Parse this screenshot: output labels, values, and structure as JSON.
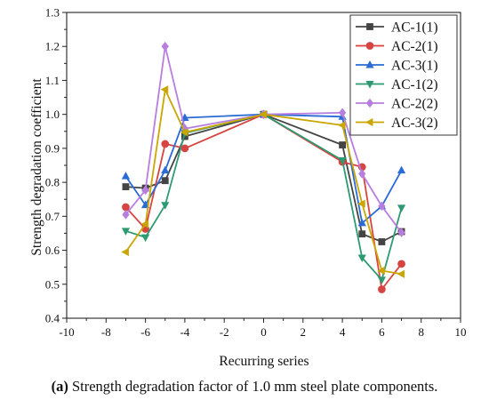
{
  "chart_data": {
    "type": "line",
    "title": "",
    "xlabel": "Recurring series",
    "ylabel": "Strength degradation coefficient",
    "xlim": [
      -10,
      10
    ],
    "ylim": [
      0.4,
      1.3
    ],
    "xticks": [
      -10,
      -8,
      -6,
      -4,
      -2,
      0,
      2,
      4,
      6,
      8,
      10
    ],
    "yticks": [
      0.4,
      0.5,
      0.6,
      0.7,
      0.8,
      0.9,
      1.0,
      1.1,
      1.2,
      1.3
    ],
    "grid": false,
    "legend_position": "top-right",
    "series": [
      {
        "name": "AC-1(1)",
        "color": "#444444",
        "marker": "square",
        "x": [
          -7,
          -6,
          -5,
          -4,
          0,
          4,
          5,
          6,
          7
        ],
        "y": [
          0.787,
          0.783,
          0.805,
          0.935,
          1.0,
          0.91,
          0.648,
          0.625,
          0.655
        ]
      },
      {
        "name": "AC-2(1)",
        "color": "#d64541",
        "marker": "circle",
        "x": [
          -7,
          -6,
          -5,
          -4,
          0,
          4,
          5,
          6,
          7
        ],
        "y": [
          0.727,
          0.663,
          0.913,
          0.9,
          1.0,
          0.86,
          0.845,
          0.485,
          0.56
        ]
      },
      {
        "name": "AC-3(1)",
        "color": "#2a6bd6",
        "marker": "triangle-up",
        "x": [
          -7,
          -6,
          -5,
          -4,
          0,
          4,
          5,
          6,
          7
        ],
        "y": [
          0.818,
          0.733,
          0.835,
          0.99,
          1.0,
          0.993,
          0.68,
          0.73,
          0.835
        ]
      },
      {
        "name": "AC-1(2)",
        "color": "#2e9a72",
        "marker": "triangle-down",
        "x": [
          -7,
          -6,
          -5,
          -4,
          0,
          4,
          5,
          6,
          7
        ],
        "y": [
          0.657,
          0.638,
          0.733,
          0.945,
          1.0,
          0.865,
          0.578,
          0.513,
          0.725
        ]
      },
      {
        "name": "AC-2(2)",
        "color": "#b77ee0",
        "marker": "diamond",
        "x": [
          -7,
          -6,
          -5,
          -4,
          0,
          4,
          5,
          6,
          7
        ],
        "y": [
          0.705,
          0.777,
          1.2,
          0.958,
          1.0,
          1.005,
          0.825,
          0.73,
          0.652
        ]
      },
      {
        "name": "AC-3(2)",
        "color": "#c9a600",
        "marker": "triangle-left",
        "x": [
          -7,
          -6,
          -5,
          -4,
          0,
          4,
          5,
          6,
          7
        ],
        "y": [
          0.595,
          0.677,
          1.073,
          0.947,
          1.0,
          0.968,
          0.737,
          0.54,
          0.53
        ]
      }
    ]
  },
  "caption": {
    "label": "(a)",
    "text": " Strength degradation factor of 1.0 mm steel plate components."
  }
}
